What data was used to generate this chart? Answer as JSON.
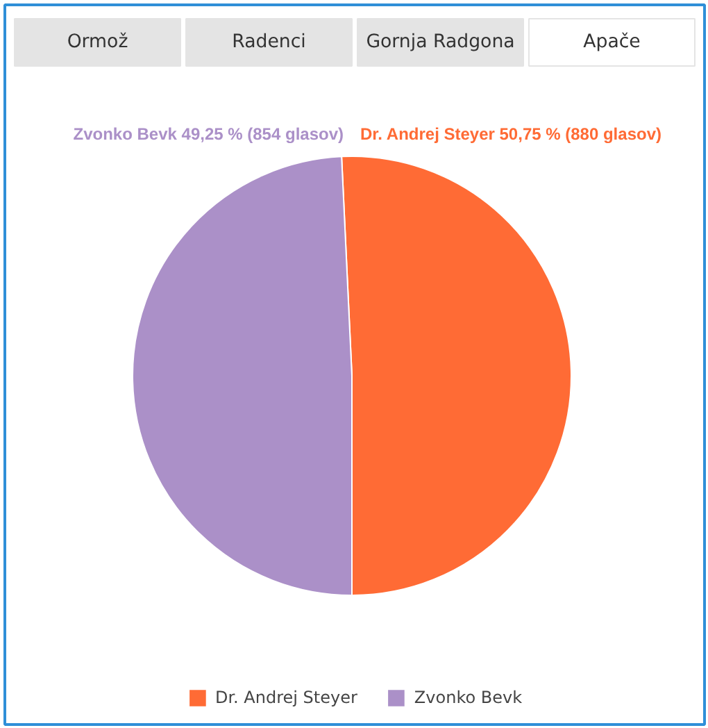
{
  "chart_data": {
    "type": "pie",
    "categories": [
      "Dr. Andrej Steyer",
      "Zvonko Bevk"
    ],
    "values": [
      880,
      854
    ],
    "colors": [
      "#ff6b35",
      "#ab90c8"
    ],
    "value_labels": [
      "Dr. Andrej Steyer 50,75 % (880 glasov)",
      "Zvonko Bevk 49,25 % (854 glasov)"
    ],
    "annotations": [
      "Ormož",
      "Radenci",
      "Gornja Radgona",
      "Apače"
    ],
    "legend": "bottom"
  }
}
